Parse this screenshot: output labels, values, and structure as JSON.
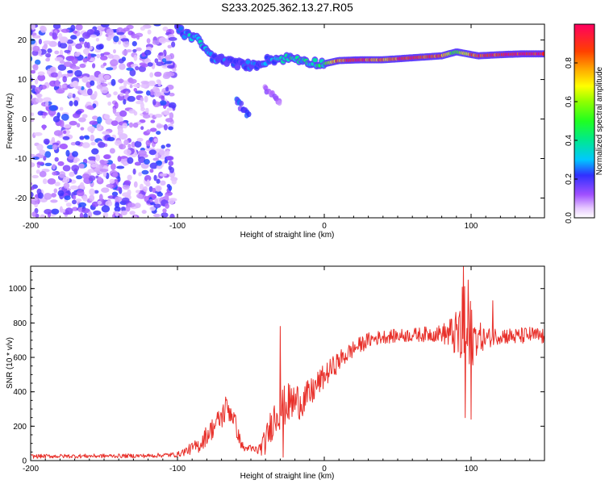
{
  "title": "S233.2025.362.13.27.R05",
  "chart_data": [
    {
      "type": "heatmap",
      "name": "spectrogram",
      "xlabel": "Height of straight line (km)",
      "ylabel": "Frequency (Hz)",
      "xlim": [
        -200,
        150
      ],
      "ylim": [
        -25,
        24
      ],
      "xticks": [
        -200,
        -100,
        0,
        100
      ],
      "yticks": [
        -20,
        -10,
        0,
        10,
        20
      ],
      "colorbar": {
        "label": "Normalized spectral amplitude",
        "range": [
          0,
          1
        ],
        "ticks": [
          0.0,
          0.2,
          0.4,
          0.6,
          0.8
        ],
        "tick_labels": [
          "0.0",
          "0.2",
          "0.4",
          "0.6",
          "0.8"
        ]
      },
      "noise_region_x": [
        -200,
        -100
      ],
      "noise_amplitude": [
        0.05,
        0.25
      ],
      "ridge": [
        {
          "x": -100,
          "freq": 23.0,
          "amp": 0.2
        },
        {
          "x": -95,
          "freq": 21.5,
          "amp": 0.25
        },
        {
          "x": -85,
          "freq": 20.0,
          "amp": 0.3
        },
        {
          "x": -78,
          "freq": 16.0,
          "amp": 0.25
        },
        {
          "x": -70,
          "freq": 15.0,
          "amp": 0.2
        },
        {
          "x": -60,
          "freq": 14.0,
          "amp": 0.18
        },
        {
          "x": -48,
          "freq": 13.5,
          "amp": 0.2
        },
        {
          "x": -38,
          "freq": 15.0,
          "amp": 0.22
        },
        {
          "x": -22,
          "freq": 15.5,
          "amp": 0.35
        },
        {
          "x": -10,
          "freq": 14.5,
          "amp": 0.3
        },
        {
          "x": 0,
          "freq": 14.0,
          "amp": 0.4
        },
        {
          "x": 10,
          "freq": 14.8,
          "amp": 0.8
        },
        {
          "x": 25,
          "freq": 15.0,
          "amp": 0.85
        },
        {
          "x": 40,
          "freq": 15.0,
          "amp": 0.75
        },
        {
          "x": 60,
          "freq": 15.5,
          "amp": 0.9
        },
        {
          "x": 80,
          "freq": 16.0,
          "amp": 0.8
        },
        {
          "x": 90,
          "freq": 17.0,
          "amp": 0.45
        },
        {
          "x": 105,
          "freq": 16.0,
          "amp": 0.85
        },
        {
          "x": 120,
          "freq": 16.3,
          "amp": 0.85
        },
        {
          "x": 135,
          "freq": 16.5,
          "amp": 0.9
        },
        {
          "x": 150,
          "freq": 16.5,
          "amp": 0.9
        }
      ],
      "side_branches": [
        {
          "x": [
            -60,
            -52
          ],
          "freq": [
            5,
            1
          ],
          "amp": 0.22
        },
        {
          "x": [
            -40,
            -30
          ],
          "freq": [
            8,
            4
          ],
          "amp": 0.12
        }
      ]
    },
    {
      "type": "line",
      "name": "snr",
      "xlabel": "Height of straight line (km)",
      "ylabel": "SNR (10 * v/v)",
      "xlim": [
        -200,
        150
      ],
      "ylim": [
        0,
        1130
      ],
      "xticks": [
        -200,
        -100,
        0,
        100
      ],
      "yticks": [
        0,
        200,
        400,
        600,
        800,
        1000
      ],
      "color": "#e8302a",
      "envelope": {
        "x": [
          -200,
          -120,
          -100,
          -85,
          -80,
          -72,
          -68,
          -65,
          -62,
          -58,
          -55,
          -45,
          -40,
          -35,
          -30,
          -25,
          -20,
          -15,
          -10,
          -5,
          0,
          10,
          20,
          30,
          40,
          60,
          80,
          90,
          95,
          97,
          99,
          102,
          110,
          120,
          130,
          140,
          150
        ],
        "y": [
          25,
          28,
          35,
          90,
          150,
          230,
          280,
          300,
          260,
          130,
          70,
          60,
          110,
          240,
          300,
          330,
          340,
          350,
          380,
          440,
          490,
          580,
          650,
          700,
          720,
          730,
          740,
          730,
          720,
          700,
          680,
          720,
          710,
          730,
          720,
          730,
          720
        ],
        "noise": [
          12,
          12,
          15,
          45,
          60,
          70,
          80,
          80,
          70,
          40,
          25,
          30,
          80,
          110,
          120,
          120,
          120,
          100,
          90,
          80,
          70,
          60,
          50,
          45,
          40,
          40,
          50,
          140,
          330,
          380,
          300,
          120,
          60,
          50,
          50,
          50,
          50
        ]
      },
      "marks": [
        {
          "x": -67,
          "y": 370
        },
        {
          "x": -52,
          "y": 80
        },
        {
          "x": -30,
          "y": 780
        },
        {
          "x": -28,
          "y": 20
        },
        {
          "x": 95,
          "y": 1130
        },
        {
          "x": 96,
          "y": 250
        },
        {
          "x": 98,
          "y": 1050
        },
        {
          "x": 100,
          "y": 240
        },
        {
          "x": 115,
          "y": 930
        }
      ]
    }
  ]
}
